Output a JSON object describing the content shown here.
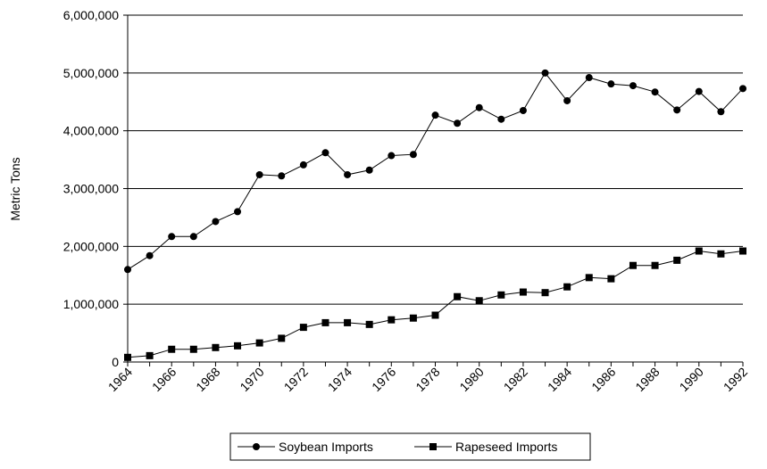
{
  "chart_data": {
    "type": "line",
    "title": "",
    "xlabel": "",
    "ylabel": "Metric Tons",
    "x": [
      1964,
      1965,
      1966,
      1967,
      1968,
      1969,
      1970,
      1971,
      1972,
      1973,
      1974,
      1975,
      1976,
      1977,
      1978,
      1979,
      1980,
      1981,
      1982,
      1983,
      1984,
      1985,
      1986,
      1987,
      1988,
      1989,
      1990,
      1991,
      1992
    ],
    "x_tick_labels": [
      "1964",
      "1966",
      "1968",
      "1970",
      "1972",
      "1974",
      "1976",
      "1978",
      "1980",
      "1982",
      "1984",
      "1986",
      "1988",
      "1990",
      "1992"
    ],
    "y_tick_labels": [
      "0",
      "1,000,000",
      "2,000,000",
      "3,000,000",
      "4,000,000",
      "5,000,000",
      "6,000,000"
    ],
    "xlim": [
      1964,
      1992
    ],
    "ylim": [
      0,
      6000000
    ],
    "grid": "horizontal",
    "legend_position": "bottom",
    "series": [
      {
        "name": "Soybean Imports",
        "marker": "circle",
        "color": "#000000",
        "values": [
          1600000,
          1840000,
          2170000,
          2170000,
          2430000,
          2600000,
          3240000,
          3220000,
          3410000,
          3620000,
          3240000,
          3320000,
          3570000,
          3590000,
          4270000,
          4130000,
          4400000,
          4200000,
          4350000,
          5000000,
          4520000,
          4920000,
          4810000,
          4780000,
          4670000,
          4360000,
          4680000,
          4330000,
          4730000
        ]
      },
      {
        "name": "Rapeseed Imports",
        "marker": "square",
        "color": "#000000",
        "values": [
          80000,
          110000,
          220000,
          220000,
          250000,
          280000,
          330000,
          410000,
          600000,
          680000,
          680000,
          650000,
          730000,
          760000,
          810000,
          1130000,
          1060000,
          1160000,
          1210000,
          1200000,
          1300000,
          1460000,
          1440000,
          1670000,
          1670000,
          1760000,
          1920000,
          1870000,
          1920000
        ]
      }
    ]
  }
}
